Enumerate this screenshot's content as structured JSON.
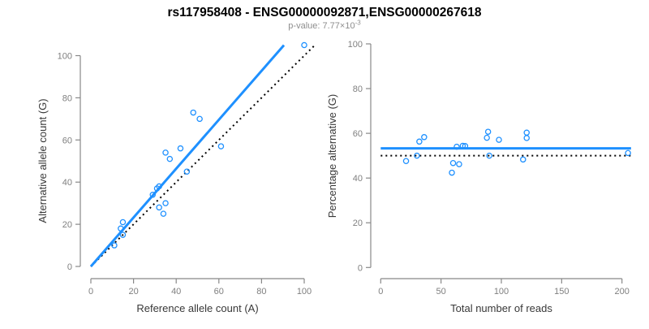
{
  "figure": {
    "title": "rs117958408 - ENSG00000092871,ENSG00000267618",
    "subtitle_prefix": "p-value: 7.77×10",
    "subtitle_exponent": "-3",
    "colors": {
      "point": "#1E90FF",
      "fit_line": "#1E90FF",
      "dotted_line": "#000000",
      "axis_line": "#888888",
      "tick_label": "#7f7f7f",
      "axis_title": "#383838",
      "title": "#000000",
      "subtitle": "#8e8e8e",
      "background": "#ffffff"
    }
  },
  "chart_data": [
    {
      "type": "scatter",
      "panel": "left",
      "xlabel": "Reference allele count (A)",
      "ylabel": "Alternative allele count (G)",
      "xlim": [
        0,
        100
      ],
      "ylim": [
        0,
        100
      ],
      "xticks": [
        0,
        20,
        40,
        60,
        80,
        100
      ],
      "yticks": [
        0,
        20,
        40,
        60,
        80,
        100
      ],
      "grid": false,
      "marker": "open-circle",
      "points": [
        [
          11,
          10
        ],
        [
          14,
          18
        ],
        [
          15,
          15
        ],
        [
          15,
          21
        ],
        [
          29,
          34
        ],
        [
          31,
          37
        ],
        [
          32,
          38
        ],
        [
          32,
          28
        ],
        [
          34,
          25
        ],
        [
          35,
          30
        ],
        [
          35,
          54
        ],
        [
          37,
          51
        ],
        [
          42,
          56
        ],
        [
          45,
          45
        ],
        [
          48,
          73
        ],
        [
          51,
          70
        ],
        [
          61,
          57
        ],
        [
          100,
          105
        ]
      ],
      "fit_line": {
        "slope": 1.16,
        "intercept": 0,
        "x_range": [
          0,
          90.5
        ],
        "style": "solid-blue"
      },
      "identity_line": {
        "slope": 1,
        "intercept": 0,
        "x_range": [
          0,
          104.5
        ],
        "style": "dotted-black"
      }
    },
    {
      "type": "scatter",
      "panel": "right",
      "xlabel": "Total number of reads",
      "ylabel": "Percentage alternative (G)",
      "xlim": [
        0,
        200
      ],
      "ylim": [
        0,
        100
      ],
      "xticks": [
        0,
        50,
        100,
        150,
        200
      ],
      "yticks": [
        0,
        20,
        40,
        60,
        80,
        100
      ],
      "grid": false,
      "marker": "open-circle",
      "points": [
        [
          21,
          47.6
        ],
        [
          32,
          56.3
        ],
        [
          30,
          50.0
        ],
        [
          36,
          58.3
        ],
        [
          63,
          54.0
        ],
        [
          68,
          54.4
        ],
        [
          70,
          54.3
        ],
        [
          60,
          46.7
        ],
        [
          59,
          42.4
        ],
        [
          65,
          46.2
        ],
        [
          89,
          60.7
        ],
        [
          88,
          58.0
        ],
        [
          98,
          57.1
        ],
        [
          90,
          50.0
        ],
        [
          121,
          60.3
        ],
        [
          121,
          57.9
        ],
        [
          118,
          48.3
        ],
        [
          205,
          51.2
        ]
      ],
      "mean_line": {
        "y": 53.3,
        "x_range": [
          0,
          207.5
        ],
        "style": "solid-blue"
      },
      "reference_line": {
        "y": 50,
        "x_range": [
          0,
          207.5
        ],
        "style": "dotted-black"
      }
    }
  ]
}
